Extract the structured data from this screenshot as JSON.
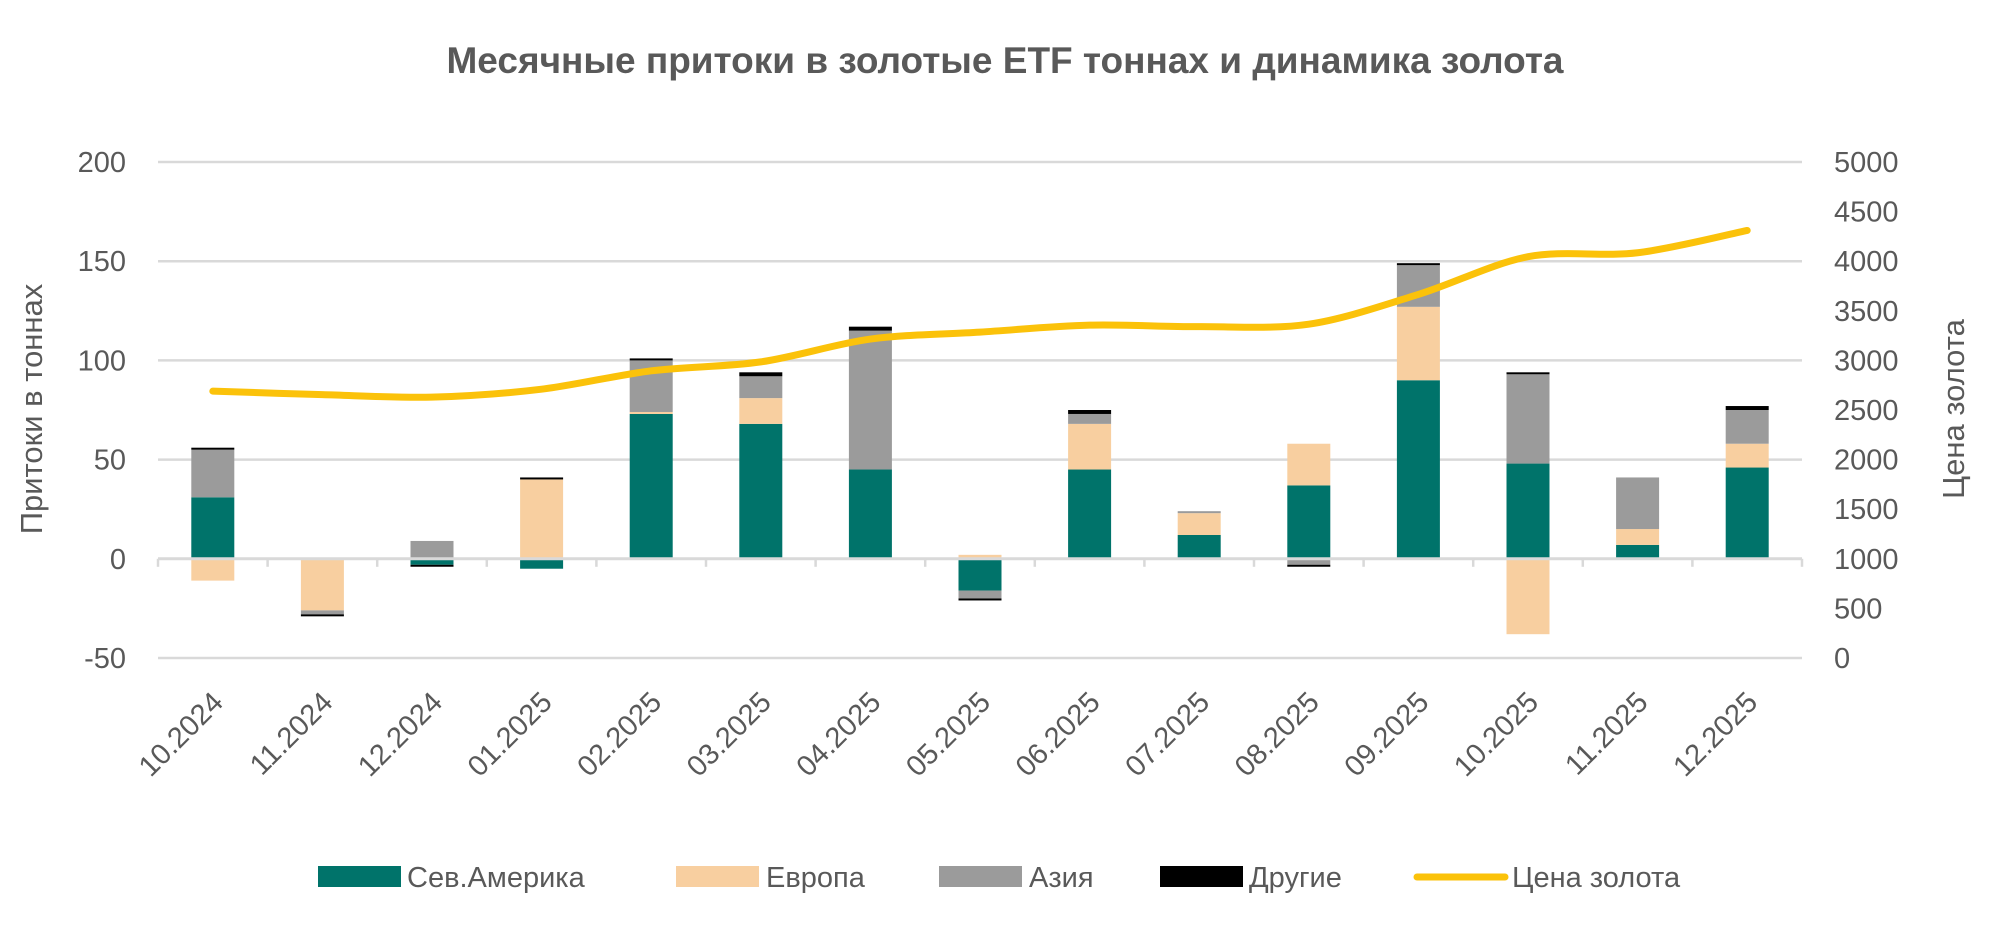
{
  "chart_data": {
    "type": "bar",
    "stacked": true,
    "title": "Месячные притоки в золотые ETF тоннах и динамика золота",
    "ylabel": "Притоки в тоннах",
    "ylabel_right": "Цена золота",
    "ylim": [
      -50,
      200
    ],
    "yticks": [
      -50,
      0,
      50,
      100,
      150,
      200
    ],
    "ylim_right": [
      0,
      5000
    ],
    "yticks_right": [
      0,
      500,
      1000,
      1500,
      2000,
      2500,
      3000,
      3500,
      4000,
      4500,
      5000
    ],
    "grid": true,
    "legend_position": "bottom",
    "categories": [
      "10.2024",
      "11.2024",
      "12.2024",
      "01.2025",
      "02.2025",
      "03.2025",
      "04.2025",
      "05.2025",
      "06.2025",
      "07.2025",
      "08.2025",
      "09.2025",
      "10.2025",
      "11.2025",
      "12.2025"
    ],
    "series": [
      {
        "name": "Сев.Америка",
        "type": "bar",
        "color": "#00736a",
        "values": [
          31,
          0,
          -3,
          -5,
          73,
          68,
          45,
          -16,
          45,
          12,
          37,
          90,
          48,
          7,
          46
        ]
      },
      {
        "name": "Европа",
        "type": "bar",
        "color": "#f8cfa0",
        "values": [
          -11,
          -26,
          0,
          40,
          1,
          13,
          0,
          2,
          23,
          11,
          21,
          37,
          -38,
          8,
          12
        ]
      },
      {
        "name": "Азия",
        "type": "bar",
        "color": "#9b9b9b",
        "values": [
          24,
          -2,
          9,
          0,
          26,
          11,
          70,
          -4,
          5,
          1,
          -3,
          21,
          45,
          26,
          17
        ]
      },
      {
        "name": "Другие",
        "type": "bar",
        "color": "#000000",
        "values": [
          1,
          -1,
          -1,
          1,
          1,
          2,
          2,
          -1,
          2,
          0,
          -1,
          1,
          1,
          0,
          2
        ]
      },
      {
        "name": "Цена золота",
        "type": "line",
        "axis": "right",
        "color": "#fbc20a",
        "values": [
          2690,
          2655,
          2630,
          2710,
          2895,
          2985,
          3215,
          3285,
          3355,
          3340,
          3365,
          3665,
          4045,
          4085,
          4310
        ]
      }
    ]
  }
}
